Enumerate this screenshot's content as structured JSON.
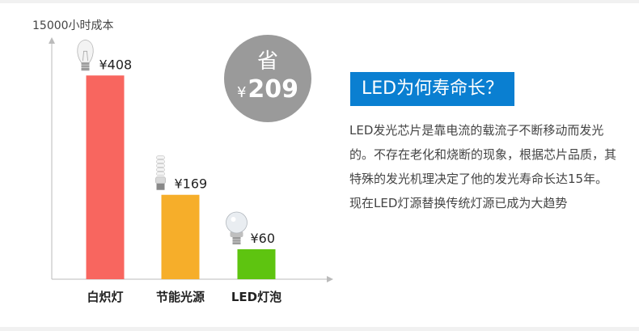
{
  "chart_data": {
    "type": "bar",
    "ylabel": "15000小时成本",
    "categories": [
      "白炽灯",
      "节能光源",
      "LED灯泡"
    ],
    "values": [
      408,
      169,
      60
    ],
    "value_labels": [
      "¥408",
      "¥169",
      "¥60"
    ],
    "bar_colors": [
      "#f8665f",
      "#f6ae2a",
      "#5ec410"
    ],
    "bulb_icons": [
      "incandescent-bulb-icon",
      "cfl-bulb-icon",
      "led-bulb-icon"
    ],
    "ylim": [
      0,
      500
    ],
    "grid": false
  },
  "badge": {
    "word": "省",
    "currency": "¥",
    "amount": "209",
    "color": "#9a9a9a"
  },
  "question": {
    "text": "LED为何寿命长？",
    "color": "#0a7fd1"
  },
  "description": "LED发光芯片是靠电流的载流子不断移动而发光的。不存在老化和烧断的现象，根据芯片品质，其特殊的发光机理决定了他的发光寿命长达15年。现在LED灯源替换传统灯源已成为大趋势"
}
